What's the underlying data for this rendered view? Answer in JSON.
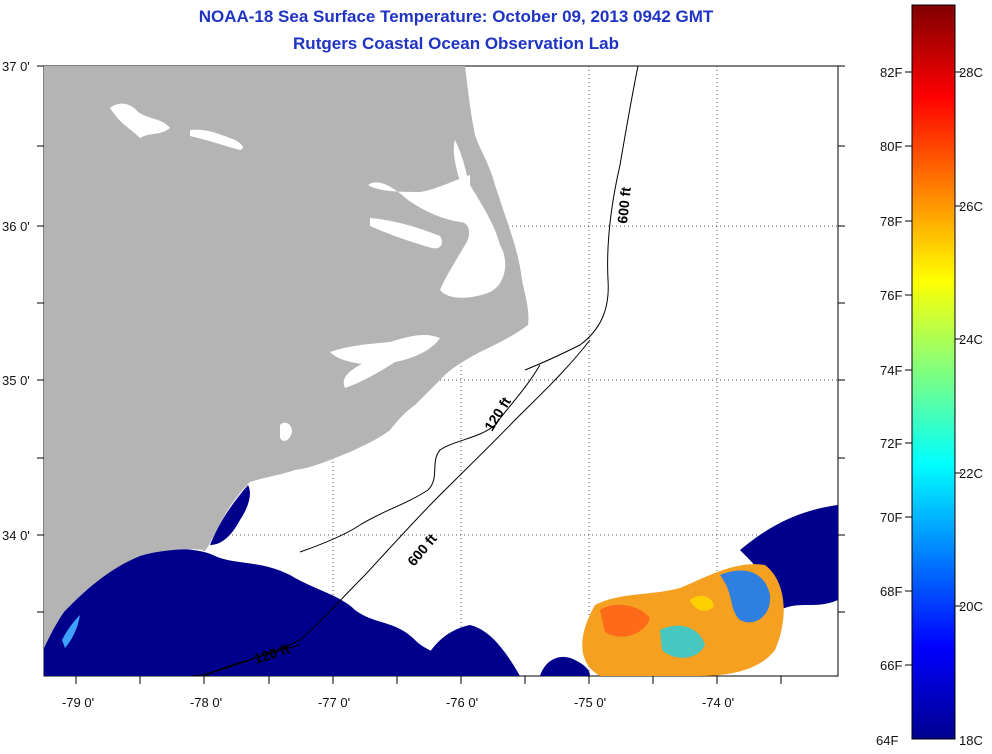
{
  "title": "NOAA-18 Sea Surface Temperature:  October 09, 2013 0942 GMT",
  "subtitle": "Rutgers Coastal Ocean Observation Lab",
  "map": {
    "lat_labels": [
      "37 0'",
      "36 0'",
      "35 0'",
      "34 0'"
    ],
    "lon_labels": [
      "-79 0'",
      "-78 0'",
      "-77 0'",
      "-76 0'",
      "-75 0'",
      "-74 0'"
    ],
    "land_color": "#b4b4b4",
    "cold_color": "#00008c",
    "contours": [
      {
        "label": "600 ft"
      },
      {
        "label": "120 ft"
      },
      {
        "label": "600 ft"
      },
      {
        "label": "120 ft"
      }
    ]
  },
  "colorbar": {
    "fahrenheit_labels": [
      "82F",
      "80F",
      "78F",
      "76F",
      "74F",
      "72F",
      "70F",
      "68F",
      "66F",
      "64F"
    ],
    "celsius_labels": [
      "28C",
      "26C",
      "24C",
      "22C",
      "20C",
      "18C"
    ]
  }
}
